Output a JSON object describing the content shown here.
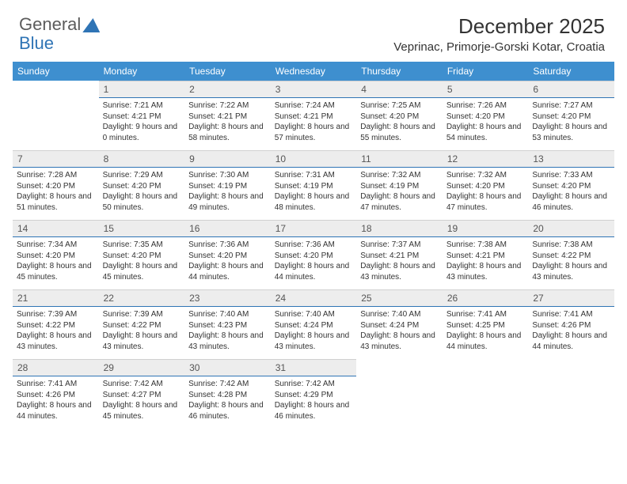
{
  "logo": {
    "part1": "General",
    "part2": "Blue"
  },
  "title": {
    "month": "December 2025",
    "location": "Veprinac, Primorje-Gorski Kotar, Croatia"
  },
  "dayHeaders": [
    "Sunday",
    "Monday",
    "Tuesday",
    "Wednesday",
    "Thursday",
    "Friday",
    "Saturday"
  ],
  "colors": {
    "headerBg": "#3e8fcf",
    "headerText": "#ffffff",
    "dayNumBg": "#ededed",
    "dayNumBorder": "#2f74b5",
    "bodyText": "#333333",
    "logoGray": "#5c5c5c",
    "logoBlue": "#2f74b5"
  },
  "weeks": [
    [
      {
        "num": "",
        "sunrise": "",
        "sunset": "",
        "daylight": ""
      },
      {
        "num": "1",
        "sunrise": "Sunrise: 7:21 AM",
        "sunset": "Sunset: 4:21 PM",
        "daylight": "Daylight: 9 hours and 0 minutes."
      },
      {
        "num": "2",
        "sunrise": "Sunrise: 7:22 AM",
        "sunset": "Sunset: 4:21 PM",
        "daylight": "Daylight: 8 hours and 58 minutes."
      },
      {
        "num": "3",
        "sunrise": "Sunrise: 7:24 AM",
        "sunset": "Sunset: 4:21 PM",
        "daylight": "Daylight: 8 hours and 57 minutes."
      },
      {
        "num": "4",
        "sunrise": "Sunrise: 7:25 AM",
        "sunset": "Sunset: 4:20 PM",
        "daylight": "Daylight: 8 hours and 55 minutes."
      },
      {
        "num": "5",
        "sunrise": "Sunrise: 7:26 AM",
        "sunset": "Sunset: 4:20 PM",
        "daylight": "Daylight: 8 hours and 54 minutes."
      },
      {
        "num": "6",
        "sunrise": "Sunrise: 7:27 AM",
        "sunset": "Sunset: 4:20 PM",
        "daylight": "Daylight: 8 hours and 53 minutes."
      }
    ],
    [
      {
        "num": "7",
        "sunrise": "Sunrise: 7:28 AM",
        "sunset": "Sunset: 4:20 PM",
        "daylight": "Daylight: 8 hours and 51 minutes."
      },
      {
        "num": "8",
        "sunrise": "Sunrise: 7:29 AM",
        "sunset": "Sunset: 4:20 PM",
        "daylight": "Daylight: 8 hours and 50 minutes."
      },
      {
        "num": "9",
        "sunrise": "Sunrise: 7:30 AM",
        "sunset": "Sunset: 4:19 PM",
        "daylight": "Daylight: 8 hours and 49 minutes."
      },
      {
        "num": "10",
        "sunrise": "Sunrise: 7:31 AM",
        "sunset": "Sunset: 4:19 PM",
        "daylight": "Daylight: 8 hours and 48 minutes."
      },
      {
        "num": "11",
        "sunrise": "Sunrise: 7:32 AM",
        "sunset": "Sunset: 4:19 PM",
        "daylight": "Daylight: 8 hours and 47 minutes."
      },
      {
        "num": "12",
        "sunrise": "Sunrise: 7:32 AM",
        "sunset": "Sunset: 4:20 PM",
        "daylight": "Daylight: 8 hours and 47 minutes."
      },
      {
        "num": "13",
        "sunrise": "Sunrise: 7:33 AM",
        "sunset": "Sunset: 4:20 PM",
        "daylight": "Daylight: 8 hours and 46 minutes."
      }
    ],
    [
      {
        "num": "14",
        "sunrise": "Sunrise: 7:34 AM",
        "sunset": "Sunset: 4:20 PM",
        "daylight": "Daylight: 8 hours and 45 minutes."
      },
      {
        "num": "15",
        "sunrise": "Sunrise: 7:35 AM",
        "sunset": "Sunset: 4:20 PM",
        "daylight": "Daylight: 8 hours and 45 minutes."
      },
      {
        "num": "16",
        "sunrise": "Sunrise: 7:36 AM",
        "sunset": "Sunset: 4:20 PM",
        "daylight": "Daylight: 8 hours and 44 minutes."
      },
      {
        "num": "17",
        "sunrise": "Sunrise: 7:36 AM",
        "sunset": "Sunset: 4:20 PM",
        "daylight": "Daylight: 8 hours and 44 minutes."
      },
      {
        "num": "18",
        "sunrise": "Sunrise: 7:37 AM",
        "sunset": "Sunset: 4:21 PM",
        "daylight": "Daylight: 8 hours and 43 minutes."
      },
      {
        "num": "19",
        "sunrise": "Sunrise: 7:38 AM",
        "sunset": "Sunset: 4:21 PM",
        "daylight": "Daylight: 8 hours and 43 minutes."
      },
      {
        "num": "20",
        "sunrise": "Sunrise: 7:38 AM",
        "sunset": "Sunset: 4:22 PM",
        "daylight": "Daylight: 8 hours and 43 minutes."
      }
    ],
    [
      {
        "num": "21",
        "sunrise": "Sunrise: 7:39 AM",
        "sunset": "Sunset: 4:22 PM",
        "daylight": "Daylight: 8 hours and 43 minutes."
      },
      {
        "num": "22",
        "sunrise": "Sunrise: 7:39 AM",
        "sunset": "Sunset: 4:22 PM",
        "daylight": "Daylight: 8 hours and 43 minutes."
      },
      {
        "num": "23",
        "sunrise": "Sunrise: 7:40 AM",
        "sunset": "Sunset: 4:23 PM",
        "daylight": "Daylight: 8 hours and 43 minutes."
      },
      {
        "num": "24",
        "sunrise": "Sunrise: 7:40 AM",
        "sunset": "Sunset: 4:24 PM",
        "daylight": "Daylight: 8 hours and 43 minutes."
      },
      {
        "num": "25",
        "sunrise": "Sunrise: 7:40 AM",
        "sunset": "Sunset: 4:24 PM",
        "daylight": "Daylight: 8 hours and 43 minutes."
      },
      {
        "num": "26",
        "sunrise": "Sunrise: 7:41 AM",
        "sunset": "Sunset: 4:25 PM",
        "daylight": "Daylight: 8 hours and 44 minutes."
      },
      {
        "num": "27",
        "sunrise": "Sunrise: 7:41 AM",
        "sunset": "Sunset: 4:26 PM",
        "daylight": "Daylight: 8 hours and 44 minutes."
      }
    ],
    [
      {
        "num": "28",
        "sunrise": "Sunrise: 7:41 AM",
        "sunset": "Sunset: 4:26 PM",
        "daylight": "Daylight: 8 hours and 44 minutes."
      },
      {
        "num": "29",
        "sunrise": "Sunrise: 7:42 AM",
        "sunset": "Sunset: 4:27 PM",
        "daylight": "Daylight: 8 hours and 45 minutes."
      },
      {
        "num": "30",
        "sunrise": "Sunrise: 7:42 AM",
        "sunset": "Sunset: 4:28 PM",
        "daylight": "Daylight: 8 hours and 46 minutes."
      },
      {
        "num": "31",
        "sunrise": "Sunrise: 7:42 AM",
        "sunset": "Sunset: 4:29 PM",
        "daylight": "Daylight: 8 hours and 46 minutes."
      },
      {
        "num": "",
        "sunrise": "",
        "sunset": "",
        "daylight": ""
      },
      {
        "num": "",
        "sunrise": "",
        "sunset": "",
        "daylight": ""
      },
      {
        "num": "",
        "sunrise": "",
        "sunset": "",
        "daylight": ""
      }
    ]
  ]
}
